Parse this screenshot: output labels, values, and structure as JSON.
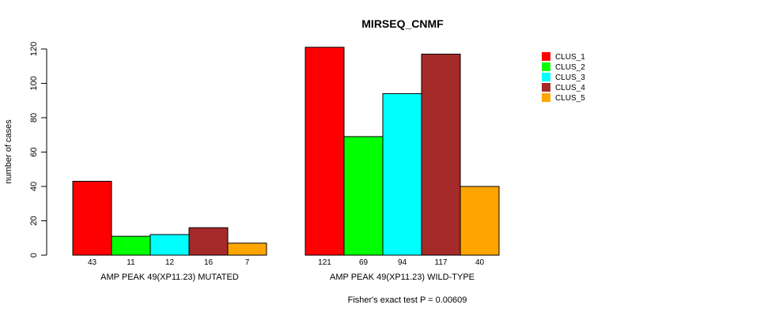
{
  "chart_data": {
    "type": "bar",
    "title": "MIRSEQ_CNMF",
    "ylabel": "number of cases",
    "ylim": [
      0,
      120
    ],
    "yticks": [
      0,
      20,
      40,
      60,
      80,
      100,
      120
    ],
    "groups": [
      {
        "label": "AMP PEAK 49(XP11.23) MUTATED",
        "values": [
          43,
          11,
          12,
          16,
          7
        ]
      },
      {
        "label": "AMP PEAK 49(XP11.23) WILD-TYPE",
        "values": [
          121,
          69,
          94,
          117,
          40
        ]
      }
    ],
    "series": [
      {
        "name": "CLUS_1",
        "color": "#ff0000"
      },
      {
        "name": "CLUS_2",
        "color": "#00ff00"
      },
      {
        "name": "CLUS_3",
        "color": "#00ffff"
      },
      {
        "name": "CLUS_4",
        "color": "#a52a2a"
      },
      {
        "name": "CLUS_5",
        "color": "#ffa500"
      }
    ],
    "legend_position": "top-right",
    "footnote": "Fisher's exact test P = 0.00609"
  }
}
